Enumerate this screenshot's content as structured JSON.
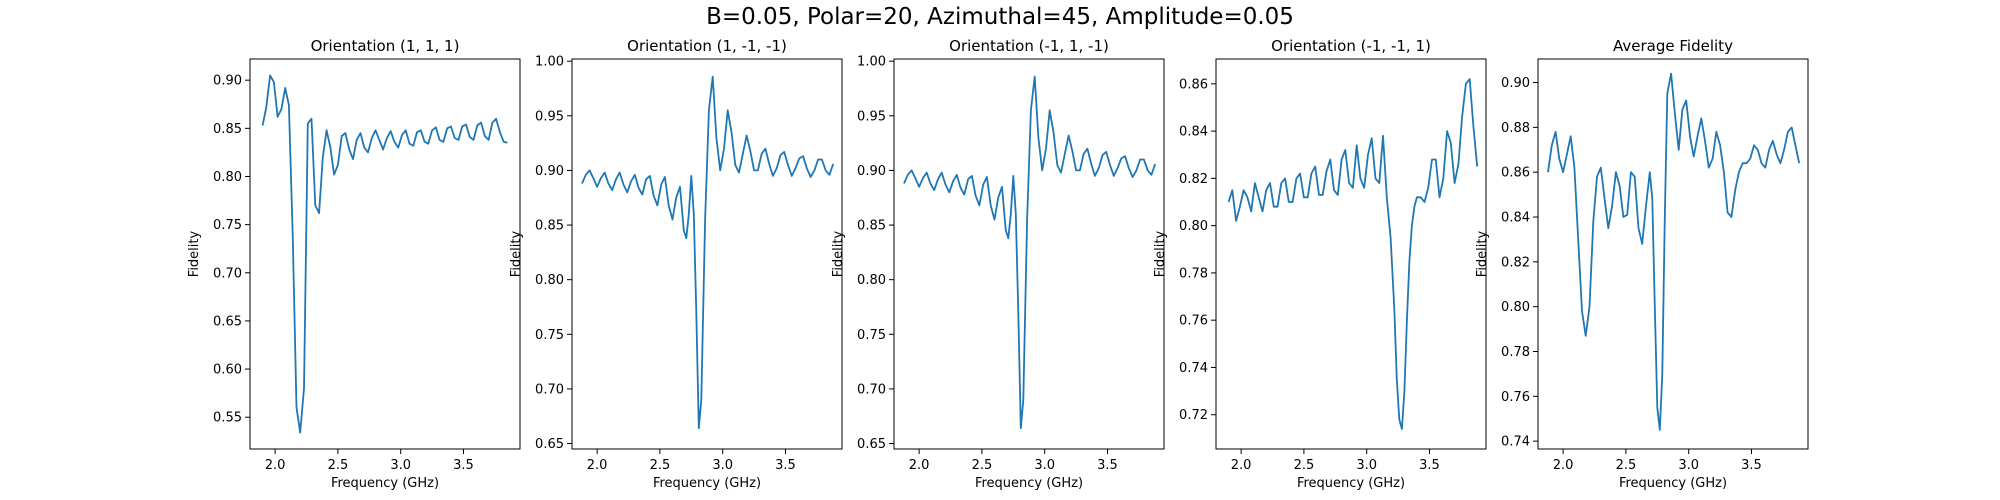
{
  "figure": {
    "suptitle": "B=0.05, Polar=20, Azimuthal=45, Amplitude=0.05",
    "line_color": "#1f77b4"
  },
  "chart_data": [
    {
      "type": "line",
      "title": "Orientation (1, 1, 1)",
      "xlabel": "Frequency (GHz)",
      "ylabel": "Fidelity",
      "xlim": [
        1.8,
        3.95
      ],
      "ylim": [
        0.517,
        0.922
      ],
      "xticks": [
        2.0,
        2.5,
        3.0,
        3.5
      ],
      "yticks": [
        0.55,
        0.6,
        0.65,
        0.7,
        0.75,
        0.8,
        0.85,
        0.9
      ],
      "series": [
        {
          "x": [
            1.9,
            1.93,
            1.96,
            1.99,
            2.02,
            2.05,
            2.08,
            2.11,
            2.14,
            2.17,
            2.2,
            2.23,
            2.26,
            2.29,
            2.32,
            2.35,
            2.38,
            2.41,
            2.44,
            2.47,
            2.5,
            2.53,
            2.56,
            2.59,
            2.62,
            2.65,
            2.68,
            2.71,
            2.74,
            2.77,
            2.8,
            2.83,
            2.86,
            2.89,
            2.92,
            2.95,
            2.98,
            3.01,
            3.04,
            3.07,
            3.1,
            3.13,
            3.16,
            3.19,
            3.22,
            3.25,
            3.28,
            3.31,
            3.34,
            3.37,
            3.4,
            3.43,
            3.46,
            3.49,
            3.52,
            3.55,
            3.58,
            3.61,
            3.64,
            3.67,
            3.7,
            3.73,
            3.76,
            3.79,
            3.82,
            3.85
          ],
          "y": [
            0.853,
            0.872,
            0.905,
            0.898,
            0.862,
            0.87,
            0.892,
            0.874,
            0.74,
            0.56,
            0.534,
            0.58,
            0.855,
            0.86,
            0.77,
            0.762,
            0.82,
            0.848,
            0.83,
            0.802,
            0.812,
            0.842,
            0.845,
            0.828,
            0.818,
            0.838,
            0.845,
            0.83,
            0.825,
            0.84,
            0.848,
            0.838,
            0.828,
            0.84,
            0.847,
            0.836,
            0.83,
            0.843,
            0.848,
            0.834,
            0.832,
            0.846,
            0.848,
            0.836,
            0.834,
            0.848,
            0.851,
            0.838,
            0.836,
            0.85,
            0.852,
            0.84,
            0.838,
            0.852,
            0.854,
            0.841,
            0.838,
            0.853,
            0.856,
            0.842,
            0.838,
            0.856,
            0.86,
            0.846,
            0.836,
            0.835
          ]
        }
      ]
    },
    {
      "type": "line",
      "title": "Orientation (1, -1, -1)",
      "xlabel": "Frequency (GHz)",
      "ylabel": "Fidelity",
      "xlim": [
        1.8,
        3.95
      ],
      "ylim": [
        0.645,
        1.002
      ],
      "xticks": [
        2.0,
        2.5,
        3.0,
        3.5
      ],
      "yticks": [
        0.65,
        0.7,
        0.75,
        0.8,
        0.85,
        0.9,
        0.95,
        1.0
      ],
      "series": [
        {
          "x": [
            1.88,
            1.91,
            1.94,
            1.97,
            2.0,
            2.03,
            2.06,
            2.09,
            2.12,
            2.15,
            2.18,
            2.21,
            2.24,
            2.27,
            2.3,
            2.33,
            2.36,
            2.39,
            2.42,
            2.45,
            2.48,
            2.51,
            2.54,
            2.57,
            2.6,
            2.63,
            2.66,
            2.69,
            2.71,
            2.73,
            2.75,
            2.77,
            2.79,
            2.81,
            2.83,
            2.86,
            2.89,
            2.92,
            2.95,
            2.98,
            3.01,
            3.04,
            3.07,
            3.1,
            3.13,
            3.16,
            3.19,
            3.22,
            3.25,
            3.28,
            3.31,
            3.34,
            3.37,
            3.4,
            3.43,
            3.46,
            3.49,
            3.52,
            3.55,
            3.58,
            3.61,
            3.64,
            3.67,
            3.7,
            3.73,
            3.76,
            3.79,
            3.82,
            3.85,
            3.88
          ],
          "y": [
            0.888,
            0.896,
            0.9,
            0.893,
            0.885,
            0.893,
            0.898,
            0.888,
            0.882,
            0.892,
            0.898,
            0.887,
            0.88,
            0.89,
            0.896,
            0.884,
            0.878,
            0.892,
            0.895,
            0.877,
            0.868,
            0.887,
            0.894,
            0.868,
            0.855,
            0.875,
            0.885,
            0.845,
            0.838,
            0.86,
            0.895,
            0.86,
            0.77,
            0.664,
            0.69,
            0.855,
            0.955,
            0.986,
            0.93,
            0.9,
            0.92,
            0.955,
            0.935,
            0.905,
            0.898,
            0.915,
            0.932,
            0.918,
            0.9,
            0.9,
            0.915,
            0.92,
            0.906,
            0.895,
            0.902,
            0.914,
            0.917,
            0.905,
            0.895,
            0.902,
            0.911,
            0.913,
            0.902,
            0.894,
            0.9,
            0.91,
            0.91,
            0.9,
            0.896,
            0.906
          ]
        }
      ]
    },
    {
      "type": "line",
      "title": "Orientation (-1, 1, -1)",
      "xlabel": "Frequency (GHz)",
      "ylabel": "Fidelity",
      "xlim": [
        1.8,
        3.95
      ],
      "ylim": [
        0.645,
        1.002
      ],
      "xticks": [
        2.0,
        2.5,
        3.0,
        3.5
      ],
      "yticks": [
        0.65,
        0.7,
        0.75,
        0.8,
        0.85,
        0.9,
        0.95,
        1.0
      ],
      "series": [
        {
          "x": [
            1.88,
            1.91,
            1.94,
            1.97,
            2.0,
            2.03,
            2.06,
            2.09,
            2.12,
            2.15,
            2.18,
            2.21,
            2.24,
            2.27,
            2.3,
            2.33,
            2.36,
            2.39,
            2.42,
            2.45,
            2.48,
            2.51,
            2.54,
            2.57,
            2.6,
            2.63,
            2.66,
            2.69,
            2.71,
            2.73,
            2.75,
            2.77,
            2.79,
            2.81,
            2.83,
            2.86,
            2.89,
            2.92,
            2.95,
            2.98,
            3.01,
            3.04,
            3.07,
            3.1,
            3.13,
            3.16,
            3.19,
            3.22,
            3.25,
            3.28,
            3.31,
            3.34,
            3.37,
            3.4,
            3.43,
            3.46,
            3.49,
            3.52,
            3.55,
            3.58,
            3.61,
            3.64,
            3.67,
            3.7,
            3.73,
            3.76,
            3.79,
            3.82,
            3.85,
            3.88
          ],
          "y": [
            0.888,
            0.896,
            0.9,
            0.893,
            0.885,
            0.893,
            0.898,
            0.888,
            0.882,
            0.892,
            0.898,
            0.887,
            0.88,
            0.89,
            0.896,
            0.884,
            0.878,
            0.892,
            0.895,
            0.877,
            0.868,
            0.887,
            0.894,
            0.868,
            0.855,
            0.875,
            0.885,
            0.845,
            0.838,
            0.86,
            0.895,
            0.86,
            0.77,
            0.664,
            0.69,
            0.855,
            0.955,
            0.986,
            0.93,
            0.9,
            0.92,
            0.955,
            0.935,
            0.905,
            0.898,
            0.915,
            0.932,
            0.918,
            0.9,
            0.9,
            0.915,
            0.92,
            0.906,
            0.895,
            0.902,
            0.914,
            0.917,
            0.905,
            0.895,
            0.902,
            0.911,
            0.913,
            0.902,
            0.894,
            0.9,
            0.91,
            0.91,
            0.9,
            0.896,
            0.906
          ]
        }
      ]
    },
    {
      "type": "line",
      "title": "Orientation (-1, -1, 1)",
      "xlabel": "Frequency (GHz)",
      "ylabel": "Fidelity",
      "xlim": [
        1.8,
        3.95
      ],
      "ylim": [
        0.7055,
        0.8705
      ],
      "xticks": [
        2.0,
        2.5,
        3.0,
        3.5
      ],
      "yticks": [
        0.72,
        0.74,
        0.76,
        0.78,
        0.8,
        0.82,
        0.84,
        0.86
      ],
      "series": [
        {
          "x": [
            1.9,
            1.93,
            1.96,
            1.99,
            2.02,
            2.05,
            2.08,
            2.11,
            2.14,
            2.17,
            2.2,
            2.23,
            2.26,
            2.29,
            2.32,
            2.35,
            2.38,
            2.41,
            2.44,
            2.47,
            2.5,
            2.53,
            2.56,
            2.59,
            2.62,
            2.65,
            2.68,
            2.71,
            2.74,
            2.77,
            2.8,
            2.83,
            2.86,
            2.89,
            2.92,
            2.95,
            2.98,
            3.01,
            3.04,
            3.07,
            3.1,
            3.13,
            3.16,
            3.19,
            3.22,
            3.24,
            3.26,
            3.28,
            3.3,
            3.32,
            3.34,
            3.36,
            3.38,
            3.4,
            3.43,
            3.46,
            3.49,
            3.52,
            3.55,
            3.58,
            3.61,
            3.64,
            3.67,
            3.7,
            3.73,
            3.76,
            3.79,
            3.82,
            3.85,
            3.88
          ],
          "y": [
            0.81,
            0.815,
            0.802,
            0.808,
            0.815,
            0.812,
            0.806,
            0.818,
            0.812,
            0.806,
            0.815,
            0.818,
            0.808,
            0.808,
            0.818,
            0.82,
            0.81,
            0.81,
            0.82,
            0.822,
            0.812,
            0.812,
            0.822,
            0.825,
            0.813,
            0.813,
            0.823,
            0.828,
            0.815,
            0.813,
            0.828,
            0.832,
            0.818,
            0.816,
            0.834,
            0.82,
            0.816,
            0.83,
            0.837,
            0.82,
            0.818,
            0.838,
            0.812,
            0.795,
            0.765,
            0.735,
            0.718,
            0.714,
            0.73,
            0.76,
            0.785,
            0.8,
            0.808,
            0.812,
            0.812,
            0.81,
            0.816,
            0.828,
            0.828,
            0.812,
            0.82,
            0.84,
            0.835,
            0.818,
            0.826,
            0.846,
            0.86,
            0.862,
            0.842,
            0.825
          ]
        }
      ]
    },
    {
      "type": "line",
      "title": "Average Fidelity",
      "xlabel": "Frequency (GHz)",
      "ylabel": "Fidelity",
      "xlim": [
        1.8,
        3.95
      ],
      "ylim": [
        0.7365,
        0.9105
      ],
      "xticks": [
        2.0,
        2.5,
        3.0,
        3.5
      ],
      "yticks": [
        0.74,
        0.76,
        0.78,
        0.8,
        0.82,
        0.84,
        0.86,
        0.88,
        0.9
      ],
      "series": [
        {
          "x": [
            1.88,
            1.91,
            1.94,
            1.97,
            2.0,
            2.03,
            2.06,
            2.09,
            2.12,
            2.15,
            2.18,
            2.21,
            2.24,
            2.27,
            2.3,
            2.33,
            2.36,
            2.39,
            2.42,
            2.45,
            2.48,
            2.51,
            2.54,
            2.57,
            2.6,
            2.63,
            2.66,
            2.69,
            2.71,
            2.73,
            2.75,
            2.77,
            2.79,
            2.81,
            2.83,
            2.86,
            2.89,
            2.92,
            2.95,
            2.98,
            3.01,
            3.04,
            3.07,
            3.1,
            3.13,
            3.16,
            3.19,
            3.22,
            3.25,
            3.28,
            3.31,
            3.34,
            3.37,
            3.4,
            3.43,
            3.46,
            3.49,
            3.52,
            3.55,
            3.58,
            3.61,
            3.64,
            3.67,
            3.7,
            3.73,
            3.76,
            3.79,
            3.82,
            3.85,
            3.88
          ],
          "y": [
            0.86,
            0.872,
            0.878,
            0.866,
            0.86,
            0.868,
            0.876,
            0.862,
            0.83,
            0.798,
            0.787,
            0.8,
            0.838,
            0.858,
            0.862,
            0.848,
            0.835,
            0.845,
            0.86,
            0.854,
            0.84,
            0.841,
            0.86,
            0.858,
            0.835,
            0.828,
            0.845,
            0.86,
            0.848,
            0.8,
            0.755,
            0.745,
            0.77,
            0.84,
            0.895,
            0.904,
            0.886,
            0.87,
            0.888,
            0.892,
            0.876,
            0.867,
            0.876,
            0.884,
            0.874,
            0.862,
            0.866,
            0.878,
            0.872,
            0.86,
            0.842,
            0.84,
            0.852,
            0.86,
            0.864,
            0.864,
            0.866,
            0.872,
            0.87,
            0.864,
            0.862,
            0.87,
            0.874,
            0.868,
            0.864,
            0.87,
            0.878,
            0.88,
            0.872,
            0.864
          ]
        }
      ]
    }
  ]
}
